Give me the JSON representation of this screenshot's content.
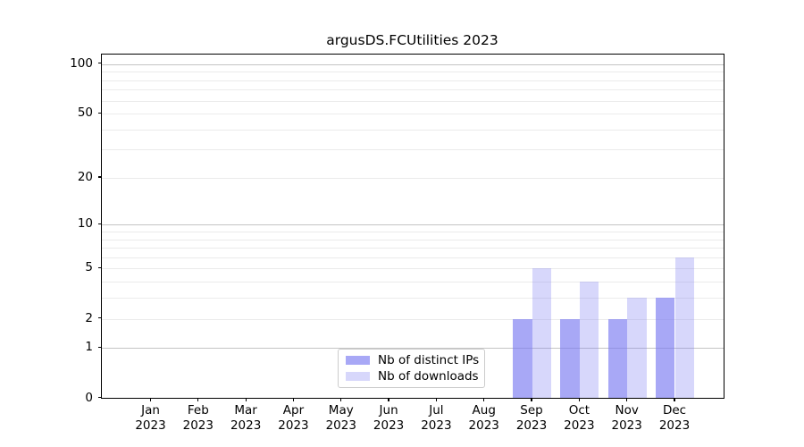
{
  "title": "argusDS.FCUtilities 2023",
  "chart_data": {
    "type": "bar",
    "title": "argusDS.FCUtilities 2023",
    "months": [
      "Jan",
      "Feb",
      "Mar",
      "Apr",
      "May",
      "Jun",
      "Jul",
      "Aug",
      "Sep",
      "Oct",
      "Nov",
      "Dec"
    ],
    "year": "2023",
    "series": [
      {
        "name": "Nb of distinct IPs",
        "fill": "rgba(123,123,242,0.66)",
        "hex_rendered": "#a7a7f4",
        "values": [
          0,
          0,
          0,
          0,
          0,
          0,
          0,
          0,
          2,
          2,
          2,
          3
        ]
      },
      {
        "name": "Nb of downloads",
        "fill": "rgba(123,123,242,0.30)",
        "hex_rendered": "#d8d8f9",
        "values": [
          0,
          0,
          0,
          0,
          0,
          0,
          0,
          0,
          5,
          4,
          3,
          6
        ]
      }
    ],
    "yscale": "log10(1+v)",
    "ylim": [
      0,
      114.5
    ],
    "y_ticks": [
      0,
      1,
      2,
      5,
      10,
      20,
      50,
      100
    ],
    "grid_minor_values": [
      2,
      3,
      4,
      5,
      6,
      7,
      8,
      9,
      20,
      30,
      40,
      50,
      60,
      70,
      80,
      90
    ],
    "grid_major_values": [
      1,
      10,
      100
    ],
    "grid_minor_color": "#ebebeb",
    "grid_major_color": "#c4c4c4",
    "legend_position": "lower center",
    "xlabel": "",
    "ylabel": ""
  }
}
